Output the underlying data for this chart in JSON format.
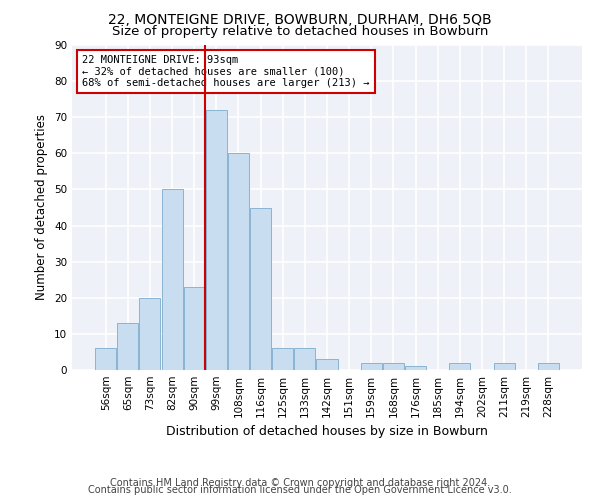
{
  "title1": "22, MONTEIGNE DRIVE, BOWBURN, DURHAM, DH6 5QB",
  "title2": "Size of property relative to detached houses in Bowburn",
  "xlabel": "Distribution of detached houses by size in Bowburn",
  "ylabel": "Number of detached properties",
  "bin_labels": [
    "56sqm",
    "65sqm",
    "73sqm",
    "82sqm",
    "90sqm",
    "99sqm",
    "108sqm",
    "116sqm",
    "125sqm",
    "133sqm",
    "142sqm",
    "151sqm",
    "159sqm",
    "168sqm",
    "176sqm",
    "185sqm",
    "194sqm",
    "202sqm",
    "211sqm",
    "219sqm",
    "228sqm"
  ],
  "bar_heights": [
    6,
    13,
    20,
    50,
    23,
    72,
    60,
    45,
    6,
    6,
    3,
    0,
    2,
    2,
    1,
    0,
    2,
    0,
    2,
    0,
    2
  ],
  "bar_color": "#c8ddef",
  "bar_edge_color": "#8ab4d4",
  "vline_x_index": 4.5,
  "vline_color": "#cc0000",
  "annotation_line1": "22 MONTEIGNE DRIVE: 93sqm",
  "annotation_line2": "← 32% of detached houses are smaller (100)",
  "annotation_line3": "68% of semi-detached houses are larger (213) →",
  "annotation_box_color": "#ffffff",
  "annotation_box_edge_color": "#cc0000",
  "ylim": [
    0,
    90
  ],
  "yticks": [
    0,
    10,
    20,
    30,
    40,
    50,
    60,
    70,
    80,
    90
  ],
  "footer1": "Contains HM Land Registry data © Crown copyright and database right 2024.",
  "footer2": "Contains public sector information licensed under the Open Government Licence v3.0.",
  "bg_color": "#eef2f8",
  "grid_color": "#ffffff",
  "title1_fontsize": 10,
  "title2_fontsize": 9.5,
  "axis_label_fontsize": 8.5,
  "tick_fontsize": 7.5,
  "annotation_fontsize": 7.5,
  "footer_fontsize": 7
}
